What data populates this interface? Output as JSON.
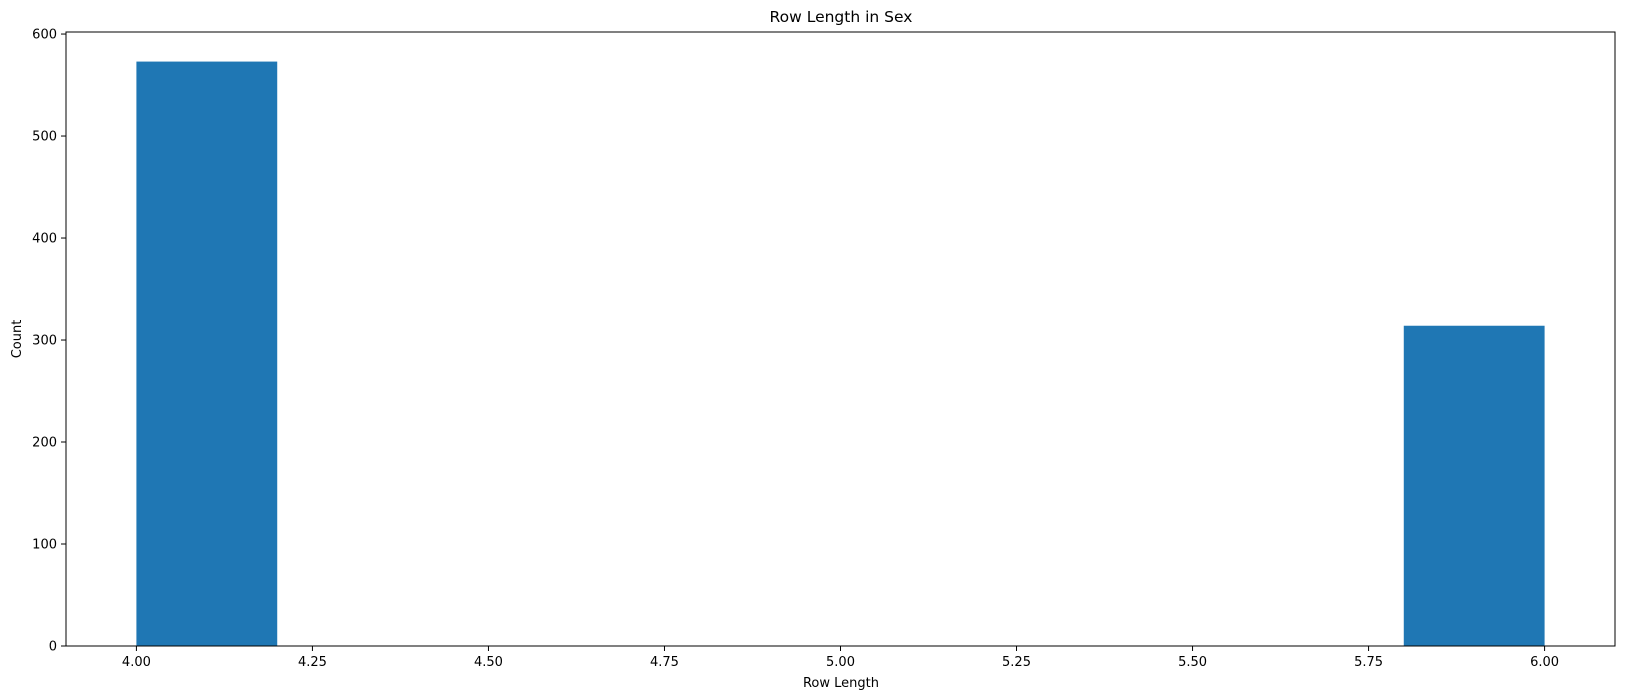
{
  "chart_data": {
    "type": "bar",
    "title": "Row Length in Sex",
    "xlabel": "Row Length",
    "ylabel": "Count",
    "xlim": [
      3.9,
      6.1
    ],
    "ylim": [
      0,
      602
    ],
    "xticks": [
      "4.00",
      "4.25",
      "4.50",
      "4.75",
      "5.00",
      "5.25",
      "5.50",
      "5.75",
      "6.00"
    ],
    "yticks": [
      "0",
      "100",
      "200",
      "300",
      "400",
      "500",
      "600"
    ],
    "bins": [
      {
        "start": 4.0,
        "end": 4.2,
        "value": 573
      },
      {
        "start": 5.8,
        "end": 6.0,
        "value": 314
      }
    ],
    "bar_color": "#1f77b4",
    "grid": false,
    "legend": "none"
  }
}
